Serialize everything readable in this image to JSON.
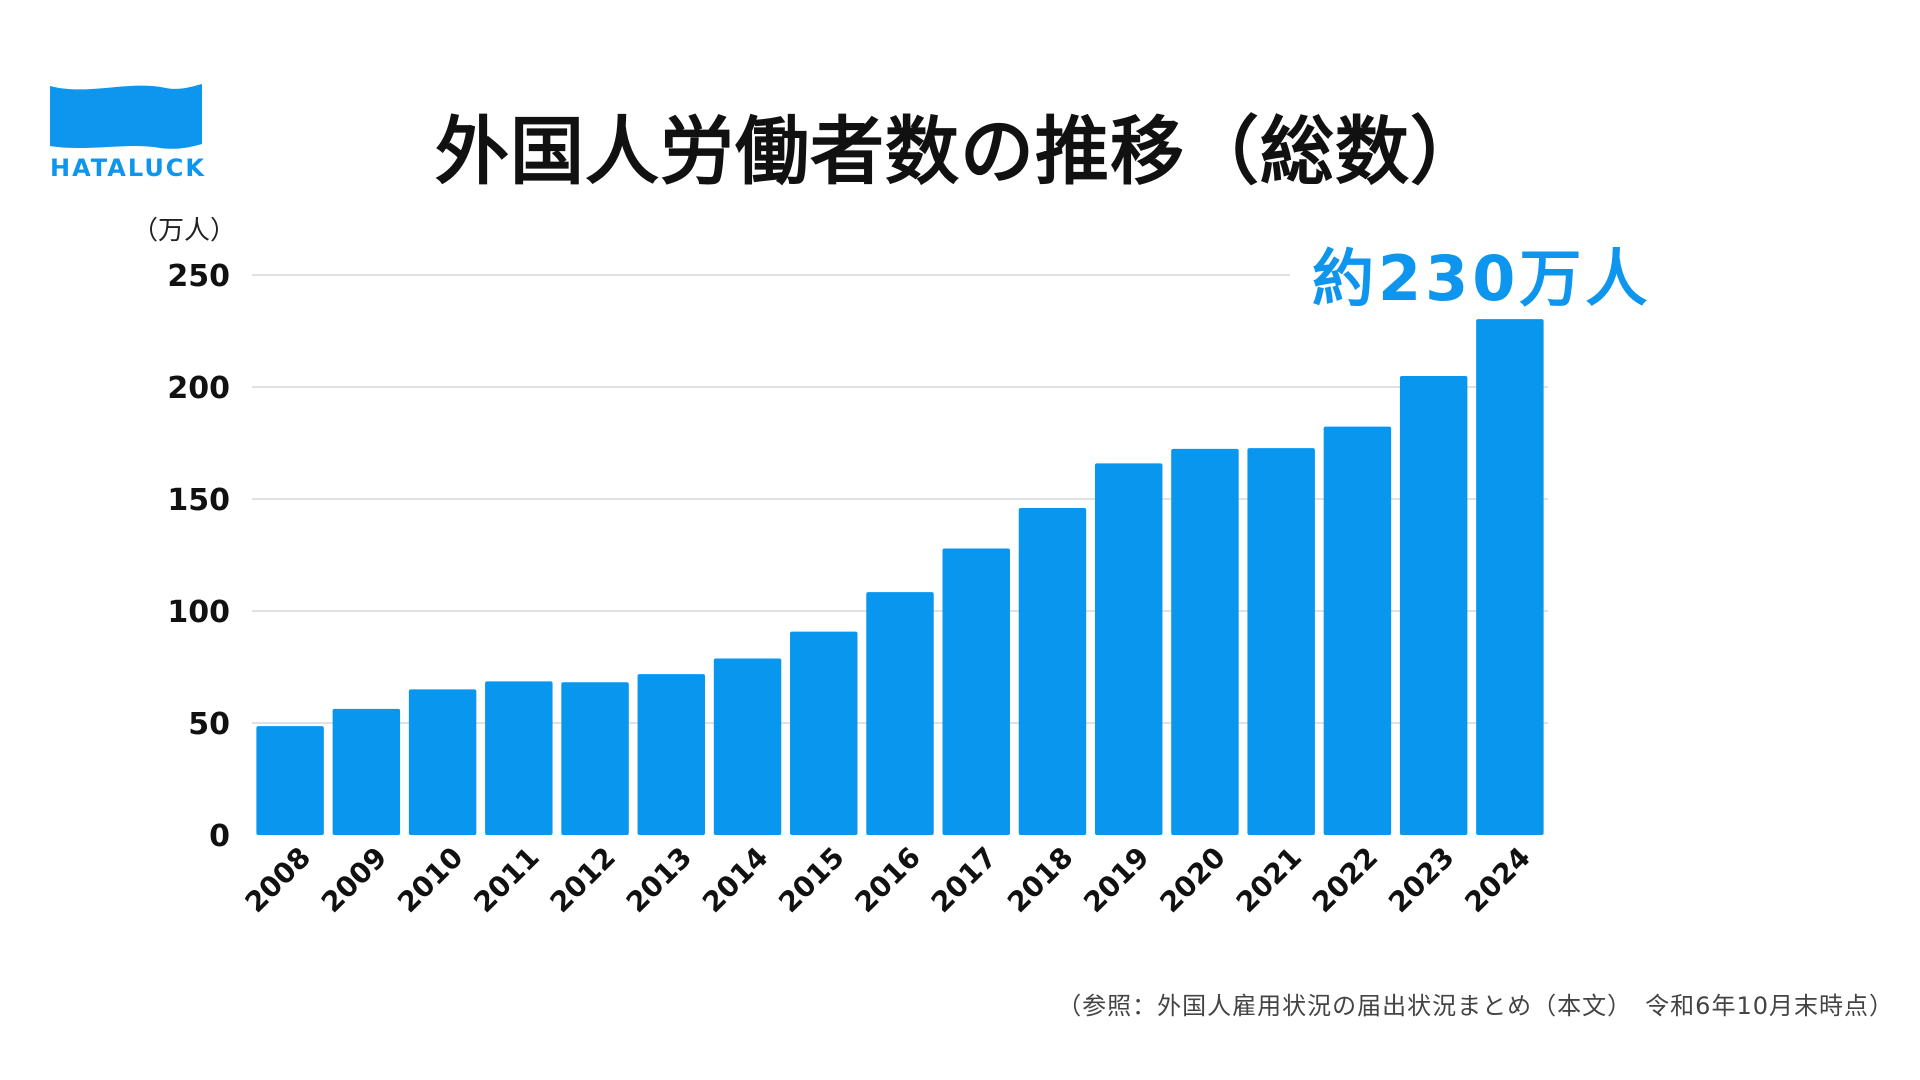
{
  "brand": {
    "name": "HATALUCK",
    "color": "#0e95ee",
    "logo_icon": "wave-flag-icon"
  },
  "title": "外国人労働者数の推移（総数）",
  "unit_label": "（万人）",
  "callout": "約230万人",
  "source": "（参照：外国人雇用状況の届出状況まとめ（本文）　令和6年10月末時点）",
  "chart_data": {
    "type": "bar",
    "title": "外国人労働者数の推移（総数）",
    "xlabel": "",
    "ylabel": "（万人）",
    "ylim": [
      0,
      250
    ],
    "yticks": [
      "0",
      "50",
      "100",
      "150",
      "200",
      "250"
    ],
    "grid": true,
    "bar_color": "#0896ee",
    "categories": [
      "2008",
      "2009",
      "2010",
      "2011",
      "2012",
      "2013",
      "2014",
      "2015",
      "2016",
      "2017",
      "2018",
      "2019",
      "2020",
      "2021",
      "2022",
      "2023",
      "2024"
    ],
    "values": [
      48.6,
      56.3,
      65.0,
      68.6,
      68.2,
      71.8,
      78.8,
      90.8,
      108.4,
      127.9,
      146.0,
      165.9,
      172.4,
      172.7,
      182.3,
      204.9,
      230.3
    ]
  }
}
